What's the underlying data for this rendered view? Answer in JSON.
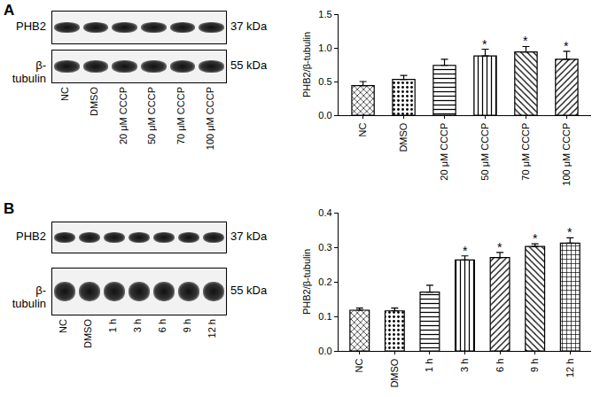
{
  "chart_data": [
    {
      "type": "bar",
      "panel": "A",
      "y_label": "PHB2/β-tubulin",
      "categories": [
        "NC",
        "DMSO",
        "20 μM CCCP",
        "50 μM CCCP",
        "70 μM CCCP",
        "100 μM CCCP"
      ],
      "values": [
        0.44,
        0.53,
        0.74,
        0.88,
        0.94,
        0.83
      ],
      "errors": [
        0.06,
        0.06,
        0.09,
        0.1,
        0.08,
        0.12
      ],
      "color": "#000000",
      "ylim": [
        0,
        1.5
      ],
      "yticks": [
        {
          "value": 0,
          "label": "0.0"
        },
        0.5,
        {
          "value": 1,
          "label": "1.0"
        },
        1.5
      ],
      "annotations": [
        {
          "category": "50 μM CCCP",
          "text": "*"
        },
        {
          "category": "70 μM CCCP",
          "text": "*"
        },
        {
          "category": "100 μM CCCP",
          "text": "*"
        }
      ]
    },
    {
      "type": "bar",
      "panel": "B",
      "y_label": "PHB2/β-tubulin",
      "categories": [
        "NC",
        "DMSO",
        "1 h",
        "3 h",
        "6 h",
        "9 h",
        "12 h"
      ],
      "values": [
        0.118,
        0.116,
        0.17,
        0.263,
        0.27,
        0.302,
        0.312
      ],
      "errors": [
        0.006,
        0.008,
        0.02,
        0.012,
        0.015,
        0.008,
        0.015
      ],
      "color": "#000000",
      "ylim": [
        0,
        0.4
      ],
      "yticks": [
        {
          "value": 0,
          "label": "0.0"
        },
        0.1,
        0.2,
        0.3,
        0.4
      ],
      "annotations": [
        {
          "category": "3 h",
          "text": "*"
        },
        {
          "category": "6 h",
          "text": "*"
        },
        {
          "category": "9 h",
          "text": "*"
        },
        {
          "category": "12 h",
          "text": "*"
        }
      ]
    }
  ],
  "blots": [
    {
      "panel": "A",
      "rows": [
        {
          "protein": "PHB2",
          "size": "37 kDa"
        },
        {
          "protein": "β-tubulin",
          "size": "55 kDa"
        }
      ],
      "lanes": [
        "NC",
        "DMSO",
        "20 μM CCCP",
        "50 μM CCCP",
        "70 μM CCCP",
        "100 μM CCCP"
      ]
    },
    {
      "panel": "B",
      "rows": [
        {
          "protein": "PHB2",
          "size": "37 kDa"
        },
        {
          "protein": "β-tubulin",
          "size": "55 kDa"
        }
      ],
      "lanes": [
        "NC",
        "DMSO",
        "1 h",
        "3 h",
        "6 h",
        "9 h",
        "12 h"
      ]
    }
  ]
}
